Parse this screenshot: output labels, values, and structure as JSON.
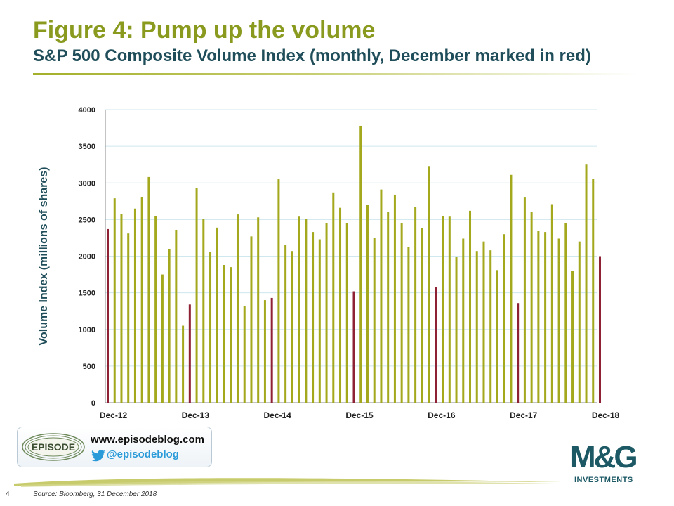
{
  "title": "Figure 4: Pump up the volume",
  "subtitle": "S&P 500 Composite Volume Index (monthly, December marked in red)",
  "branding": {
    "logo_text": "EPISODE",
    "website": "www.episodeblog.com",
    "twitter": "@episodeblog",
    "company": "M&G",
    "company_sub": "INVESTMENTS"
  },
  "footer": {
    "page_number": "4",
    "source": "Source: Bloomberg, 31 December 2018"
  },
  "colors": {
    "bar": "#a3a81c",
    "december": "#8e2134",
    "grid": "#cfe7ee",
    "title": "#8a9a1e",
    "subtitle": "#1f4e5a"
  },
  "chart_data": {
    "type": "bar",
    "ylabel": "Volume Index (millions of shares)",
    "xlabel": "",
    "ylim": [
      0,
      4000
    ],
    "yticks": [
      0,
      500,
      1000,
      1500,
      2000,
      2500,
      3000,
      3500,
      4000
    ],
    "grid": true,
    "x_tick_labels": [
      "Dec-12",
      "Dec-13",
      "Dec-14",
      "Dec-15",
      "Dec-16",
      "Dec-17",
      "Dec-18"
    ],
    "highlight": "December",
    "categories": [
      "Dec-12",
      "Jan-13",
      "Feb-13",
      "Mar-13",
      "Apr-13",
      "May-13",
      "Jun-13",
      "Jul-13",
      "Aug-13",
      "Sep-13",
      "Oct-13",
      "Nov-13",
      "Dec-13",
      "Jan-14",
      "Feb-14",
      "Mar-14",
      "Apr-14",
      "May-14",
      "Jun-14",
      "Jul-14",
      "Aug-14",
      "Sep-14",
      "Oct-14",
      "Nov-14",
      "Dec-14",
      "Jan-15",
      "Feb-15",
      "Mar-15",
      "Apr-15",
      "May-15",
      "Jun-15",
      "Jul-15",
      "Aug-15",
      "Sep-15",
      "Oct-15",
      "Nov-15",
      "Dec-15",
      "Jan-16",
      "Feb-16",
      "Mar-16",
      "Apr-16",
      "May-16",
      "Jun-16",
      "Jul-16",
      "Aug-16",
      "Sep-16",
      "Oct-16",
      "Nov-16",
      "Dec-16",
      "Jan-17",
      "Feb-17",
      "Mar-17",
      "Apr-17",
      "May-17",
      "Jun-17",
      "Jul-17",
      "Aug-17",
      "Sep-17",
      "Oct-17",
      "Nov-17",
      "Dec-17",
      "Jan-18",
      "Feb-18",
      "Mar-18",
      "Apr-18",
      "May-18",
      "Jun-18",
      "Jul-18",
      "Aug-18",
      "Sep-18",
      "Oct-18",
      "Nov-18",
      "Dec-18"
    ],
    "values": [
      2370,
      2790,
      2580,
      2310,
      2650,
      2810,
      3080,
      2550,
      1750,
      2100,
      2360,
      1050,
      1340,
      2930,
      2510,
      2060,
      2390,
      1880,
      1850,
      2570,
      1320,
      2270,
      2530,
      1400,
      1430,
      3050,
      2150,
      2070,
      2540,
      2510,
      2330,
      2230,
      2450,
      2870,
      2660,
      2450,
      1520,
      3780,
      2700,
      2250,
      2910,
      2600,
      2840,
      2450,
      2120,
      2670,
      2380,
      3230,
      1580,
      2550,
      2540,
      1990,
      2240,
      2620,
      2070,
      2200,
      2080,
      1810,
      2300,
      3110,
      1360,
      2800,
      2600,
      2350,
      2330,
      2710,
      2240,
      2450,
      1800,
      2200,
      3250,
      3060,
      2000
    ]
  }
}
